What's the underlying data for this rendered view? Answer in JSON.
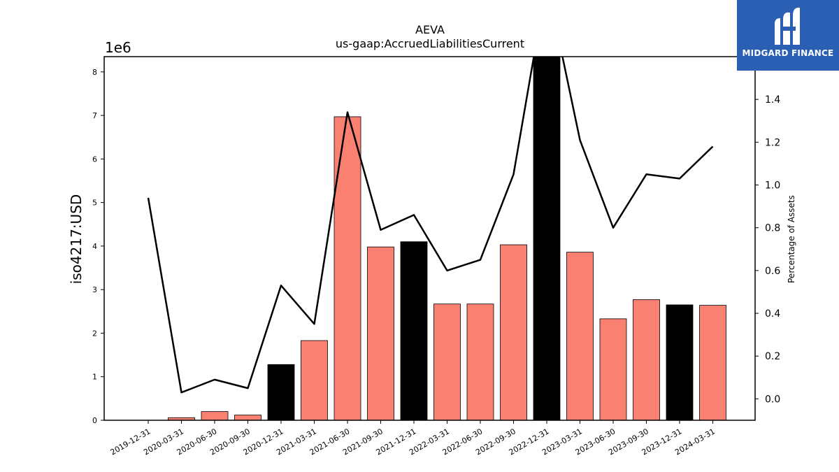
{
  "chart_data": {
    "type": "bar",
    "title": "AEVA",
    "subtitle": "us-gaap:AccruedLiabilitiesCurrent",
    "ylabel": "iso4217:USD",
    "ylabel_right": "Percentage of Assets",
    "y_offset_label": "1e6",
    "ylim": [
      0,
      8350000
    ],
    "ylim_right": [
      -0.1,
      1.6
    ],
    "yticks": [
      "0",
      "1",
      "2",
      "3",
      "4",
      "5",
      "6",
      "7",
      "8"
    ],
    "yticks_right": [
      "0.0",
      "0.2",
      "0.4",
      "0.6",
      "0.8",
      "1.0",
      "1.2",
      "1.4"
    ],
    "categories": [
      "2019-12-31",
      "2020-03-31",
      "2020-06-30",
      "2020-09-30",
      "2020-12-31",
      "2021-03-31",
      "2021-06-30",
      "2021-09-30",
      "2021-12-31",
      "2022-03-31",
      "2022-06-30",
      "2022-09-30",
      "2022-12-31",
      "2023-03-31",
      "2023-06-30",
      "2023-09-30",
      "2023-12-31",
      "2024-03-31"
    ],
    "series": [
      {
        "type": "bar",
        "values": [
          0,
          60000,
          200000,
          120000,
          1280000,
          1830000,
          6970000,
          3980000,
          4100000,
          2670000,
          2670000,
          4030000,
          8500000,
          3860000,
          2330000,
          2770000,
          2650000,
          2640000
        ],
        "bar_colors": [
          "#fa8072",
          "#fa8072",
          "#fa8072",
          "#fa8072",
          "#000000",
          "#fa8072",
          "#fa8072",
          "#fa8072",
          "#000000",
          "#fa8072",
          "#fa8072",
          "#fa8072",
          "#000000",
          "#fa8072",
          "#fa8072",
          "#fa8072",
          "#000000",
          "#fa8072"
        ]
      },
      {
        "type": "line",
        "axis": "right",
        "color": "#000000",
        "values": [
          0.94,
          0.03,
          0.09,
          0.05,
          0.53,
          0.35,
          1.34,
          0.79,
          0.86,
          0.6,
          0.65,
          1.05,
          1.95,
          1.21,
          0.8,
          1.05,
          1.03,
          1.18
        ]
      }
    ]
  },
  "logo": {
    "text": "MIDGARD FINANCE",
    "color": "#2b5fb4"
  }
}
